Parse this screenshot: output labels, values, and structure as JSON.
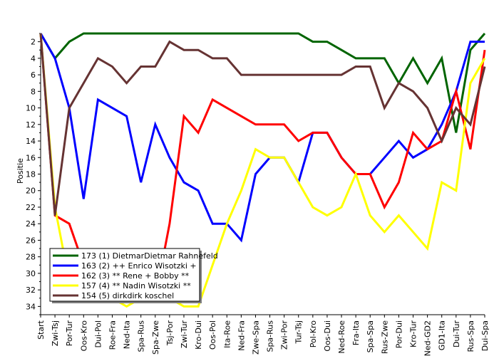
{
  "chart_data": {
    "type": "line",
    "ylabel": "Positie",
    "y_reversed": true,
    "ylim": [
      35,
      1
    ],
    "yticks": [
      2,
      4,
      6,
      8,
      10,
      12,
      14,
      16,
      18,
      20,
      22,
      24,
      26,
      28,
      30,
      32,
      34
    ],
    "categories": [
      "Start",
      "Zwi-Tsj",
      "Por-Tur",
      "Oos-Kro",
      "Dui-Pol",
      "Roe-Fra",
      "Ned-Ita",
      "Spa-Rus",
      "Spa-Zwe",
      "Tsj-Por",
      "Zwi-Tur",
      "Kro-Dui",
      "Oos-Pol",
      "Ita-Roe",
      "Ned-Fra",
      "Zwe-Spa",
      "Spa-Rus",
      "Zwi-Por",
      "Tur-Tsj",
      "Pol-Kro",
      "Oos-Dui",
      "Ned-Roe",
      "Fra-Ita",
      "Spa-Spa",
      "Rus-Zwe",
      "Por-Dui",
      "Kro-Tur",
      "Ned-GD2",
      "GD1-Ita",
      "Dui-Tur",
      "Rus-Spa",
      "Dui-Spa"
    ],
    "series": [
      {
        "name": "173 (1) DietmarDietmar Rahnefeld",
        "color": "#006400",
        "values": [
          1,
          4,
          2,
          1,
          1,
          1,
          1,
          1,
          1,
          1,
          1,
          1,
          1,
          1,
          1,
          1,
          1,
          1,
          1,
          2,
          2,
          3,
          4,
          4,
          4,
          7,
          4,
          7,
          4,
          13,
          3,
          1
        ]
      },
      {
        "name": "163 (2) ++ Enrico Wisotzki +",
        "color": "#0000ff",
        "values": [
          1,
          4,
          10,
          21,
          9,
          10,
          11,
          19,
          12,
          16,
          19,
          20,
          24,
          24,
          26,
          18,
          16,
          16,
          19,
          13,
          13,
          16,
          18,
          18,
          16,
          14,
          16,
          15,
          12,
          8,
          2,
          2
        ]
      },
      {
        "name": "162 (3) ** Rene + Bobby **",
        "color": "#ff0000",
        "values": [
          1,
          23,
          24,
          29,
          29,
          31,
          30,
          33,
          33,
          24,
          11,
          13,
          9,
          10,
          11,
          12,
          12,
          12,
          14,
          13,
          13,
          16,
          18,
          18,
          22,
          19,
          13,
          15,
          14,
          8,
          15,
          3
        ]
      },
      {
        "name": "157 (4) ** Nadin Wisotzki **",
        "color": "#ffff00",
        "values": [
          1,
          22,
          31,
          33,
          33,
          33,
          34,
          33,
          33,
          33,
          34,
          34,
          29,
          24,
          20,
          15,
          16,
          16,
          19,
          22,
          23,
          22,
          18,
          23,
          25,
          23,
          25,
          27,
          19,
          20,
          7,
          4
        ]
      },
      {
        "name": "154 (5) dirkdirk koschel",
        "color": "#663333",
        "values": [
          1,
          23,
          10,
          7,
          4,
          5,
          7,
          5,
          5,
          2,
          3,
          3,
          4,
          4,
          6,
          6,
          6,
          6,
          6,
          6,
          6,
          6,
          5,
          5,
          10,
          7,
          8,
          10,
          14,
          10,
          12,
          5
        ]
      }
    ],
    "legend_position": "bottom-left",
    "grid": false
  }
}
